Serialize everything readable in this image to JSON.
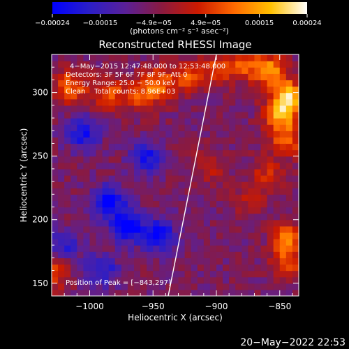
{
  "chart_data": {
    "type": "heatmap",
    "title": "Reconstructed RHESSI Image",
    "xlabel": "Heliocentric X (arcsec)",
    "ylabel": "Heliocentric Y (arcsec)",
    "xlim": [
      -1030,
      -835
    ],
    "ylim": [
      140,
      330
    ],
    "x_ticks": [
      -1000,
      -950,
      -900,
      -850
    ],
    "y_ticks": [
      150,
      200,
      250,
      300
    ],
    "x_tick_labels": [
      "−1000",
      "−950",
      "−900",
      "−850"
    ],
    "y_tick_labels": [
      "150",
      "200",
      "250",
      "300"
    ],
    "colorbar": {
      "range": [
        -0.00024,
        0.00024
      ],
      "ticks": [
        -0.00024,
        -0.00015,
        -4.9e-05,
        4.9e-05,
        0.00015,
        0.00024
      ],
      "tick_labels": [
        "−0.00024",
        "−0.00015",
        "−4.9e−05",
        "4.9e−05",
        "0.00015",
        "0.00024"
      ],
      "units_label": "(photons cm⁻² s⁻¹ asec⁻²)",
      "colors": [
        "#0000ff",
        "#2a1ec8",
        "#5a2098",
        "#8a1a40",
        "#cc1a00",
        "#ff6a00",
        "#ffc000",
        "#ffffff"
      ]
    },
    "info_lines": [
      "4−May−2015 12:47:48.000 to 12:53:48.000",
      "Detectors: 3F 5F 6F 7F 8F 9F, Att 0",
      "Energy Range: 25.0 − 50.0 keV",
      "Clean    Total counts: 8.96E+03"
    ],
    "peak_label": "Position of Peak = [−843,297]",
    "limb": [
      [
        -938,
        140
      ],
      [
        -930,
        180
      ],
      [
        -922,
        220
      ],
      [
        -914,
        260
      ],
      [
        -906,
        300
      ],
      [
        -900,
        330
      ]
    ],
    "hot_regions": [
      {
        "x": -1015,
        "y": 305,
        "value": 0.00016
      },
      {
        "x": -985,
        "y": 300,
        "value": 0.00014
      },
      {
        "x": -960,
        "y": 298,
        "value": 0.00012
      },
      {
        "x": -945,
        "y": 307,
        "value": 0.00015
      },
      {
        "x": -922,
        "y": 312,
        "value": 0.00013
      },
      {
        "x": -900,
        "y": 318,
        "value": 0.00011
      },
      {
        "x": -878,
        "y": 322,
        "value": 0.00013
      },
      {
        "x": -858,
        "y": 318,
        "value": 0.00018
      },
      {
        "x": -843,
        "y": 297,
        "value": 0.00024
      },
      {
        "x": -850,
        "y": 282,
        "value": 0.00019
      },
      {
        "x": -845,
        "y": 262,
        "value": 0.00014
      },
      {
        "x": -860,
        "y": 236,
        "value": 9e-05
      },
      {
        "x": -905,
        "y": 242,
        "value": 8e-05
      },
      {
        "x": -875,
        "y": 215,
        "value": 7e-05
      },
      {
        "x": -843,
        "y": 185,
        "value": 0.00017
      },
      {
        "x": -845,
        "y": 165,
        "value": 0.00012
      },
      {
        "x": -1028,
        "y": 158,
        "value": 0.00012
      }
    ],
    "cold_regions": [
      {
        "x": -1005,
        "y": 268,
        "value": -0.00016
      },
      {
        "x": -985,
        "y": 215,
        "value": -0.00018
      },
      {
        "x": -970,
        "y": 195,
        "value": -0.00021
      },
      {
        "x": -945,
        "y": 188,
        "value": -0.00017
      },
      {
        "x": -955,
        "y": 250,
        "value": -0.00014
      },
      {
        "x": -1020,
        "y": 180,
        "value": -0.00012
      },
      {
        "x": -990,
        "y": 160,
        "value": -0.00013
      }
    ],
    "grid": false
  },
  "footer": {
    "timestamp": "20−May−2022 22:53"
  }
}
